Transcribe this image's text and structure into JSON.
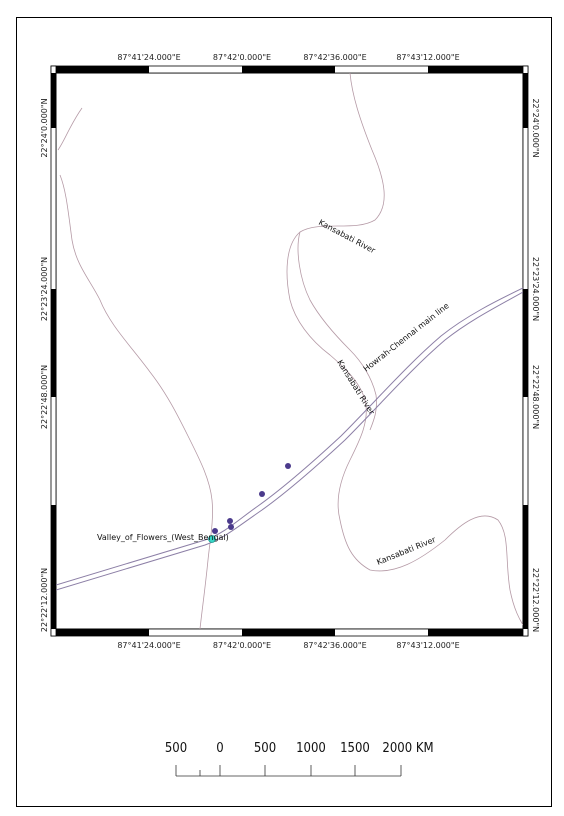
{
  "map": {
    "top_coords": [
      "87°41'24.000\"E",
      "87°42'0.000\"E",
      "87°42'36.000\"E",
      "87°43'12.000\"E"
    ],
    "bottom_coords": [
      "87°41'24.000\"E",
      "87°42'0.000\"E",
      "87°42'36.000\"E",
      "87°43'12.000\"E"
    ],
    "left_coords": [
      "22°24'0.000\"N",
      "22°23'24.000\"N",
      "22°22'48.000\"N",
      "22°22'12.000\"N"
    ],
    "right_coords": [
      "22°24'0.000\"N",
      "22°23'24.000\"N",
      "22°22'48.000\"N",
      "22°22'12.000\"N"
    ],
    "labels": {
      "river_1": "Kansabati River",
      "river_2": "Kansabati River",
      "river_3": "Kansabati River",
      "railway": "Howrah-Chennai main line",
      "place": "Valley_of_Flowers_(West_Bengal)"
    },
    "colors": {
      "river": "#b59aa6",
      "railway": "#8c7fa6",
      "point": "#4b3a8c",
      "place_point": "#39d6c6"
    }
  },
  "scale_bar": {
    "labels": [
      "500",
      "0",
      "500",
      "1000",
      "1500",
      "2000 KM"
    ]
  }
}
